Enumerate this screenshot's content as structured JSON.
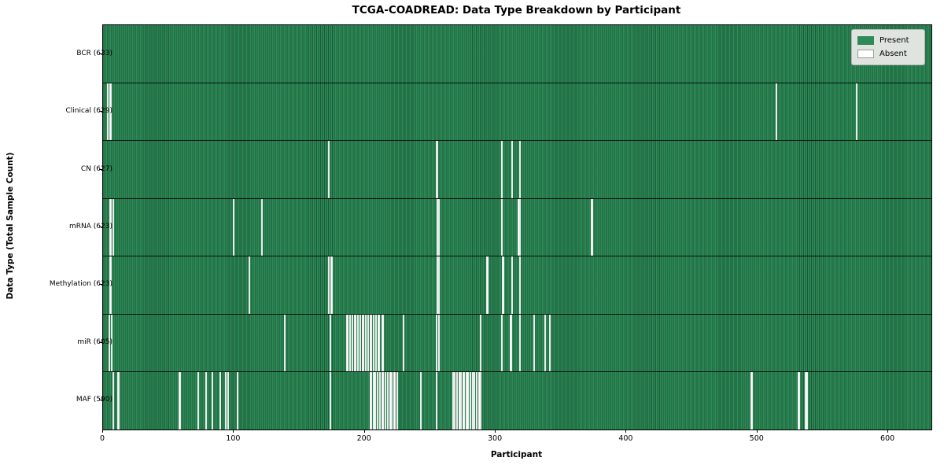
{
  "figure": {
    "title": "TCGA-COADREAD: Data Type Breakdown by Participant",
    "xlabel": "Participant",
    "ylabel": "Data Type (Total Sample Count)"
  },
  "legend": {
    "items": [
      {
        "label": "Present",
        "color": "#2e8b57"
      },
      {
        "label": "Absent",
        "color": "#ffffff"
      }
    ]
  },
  "chart_data": {
    "type": "heatmap",
    "title": "TCGA-COADREAD: Data Type Breakdown by Participant",
    "xlabel": "Participant",
    "ylabel": "Data Type (Total Sample Count)",
    "legend_position": "upper right",
    "n_participants": 633,
    "x_ticks": [
      0,
      100,
      200,
      300,
      400,
      500,
      600
    ],
    "xlim": [
      0,
      633
    ],
    "present_color": "#2e8b57",
    "absent_color": "#ffffff",
    "rows": [
      {
        "data_type": "BCR",
        "label": "BCR (633)",
        "present_count": 633,
        "absent_participants": []
      },
      {
        "data_type": "Clinical",
        "label": "Clinical (629)",
        "present_count": 629,
        "absent_participants": [
          3,
          5,
          514,
          575
        ]
      },
      {
        "data_type": "CN",
        "label": "CN (627)",
        "present_count": 627,
        "absent_participants": [
          172,
          254,
          255,
          304,
          312,
          318
        ]
      },
      {
        "data_type": "mRNA",
        "label": "mRNA (623)",
        "present_count": 623,
        "absent_participants": [
          5,
          7,
          99,
          121,
          255,
          256,
          304,
          317,
          318,
          373
        ]
      },
      {
        "data_type": "Methylation",
        "label": "Methylation (623)",
        "present_count": 623,
        "absent_participants": [
          5,
          111,
          172,
          174,
          255,
          256,
          293,
          305,
          312,
          318
        ]
      },
      {
        "data_type": "miR",
        "label": "miR (605)",
        "present_count": 605,
        "absent_participants": [
          4,
          6,
          138,
          173,
          186,
          188,
          190,
          192,
          194,
          196,
          198,
          200,
          202,
          204,
          206,
          208,
          210,
          213,
          229,
          254,
          256,
          288,
          304,
          311,
          318,
          329,
          337,
          341
        ]
      },
      {
        "data_type": "MAF",
        "label": "MAF (590)",
        "present_count": 590,
        "absent_participants": [
          7,
          11,
          58,
          72,
          78,
          83,
          89,
          93,
          95,
          102,
          173,
          204,
          206,
          207,
          209,
          211,
          213,
          215,
          217,
          219,
          220,
          222,
          224,
          242,
          254,
          267,
          268,
          270,
          272,
          273,
          275,
          277,
          278,
          280,
          282,
          283,
          285,
          287,
          288,
          495,
          531,
          536,
          537
        ]
      }
    ]
  }
}
